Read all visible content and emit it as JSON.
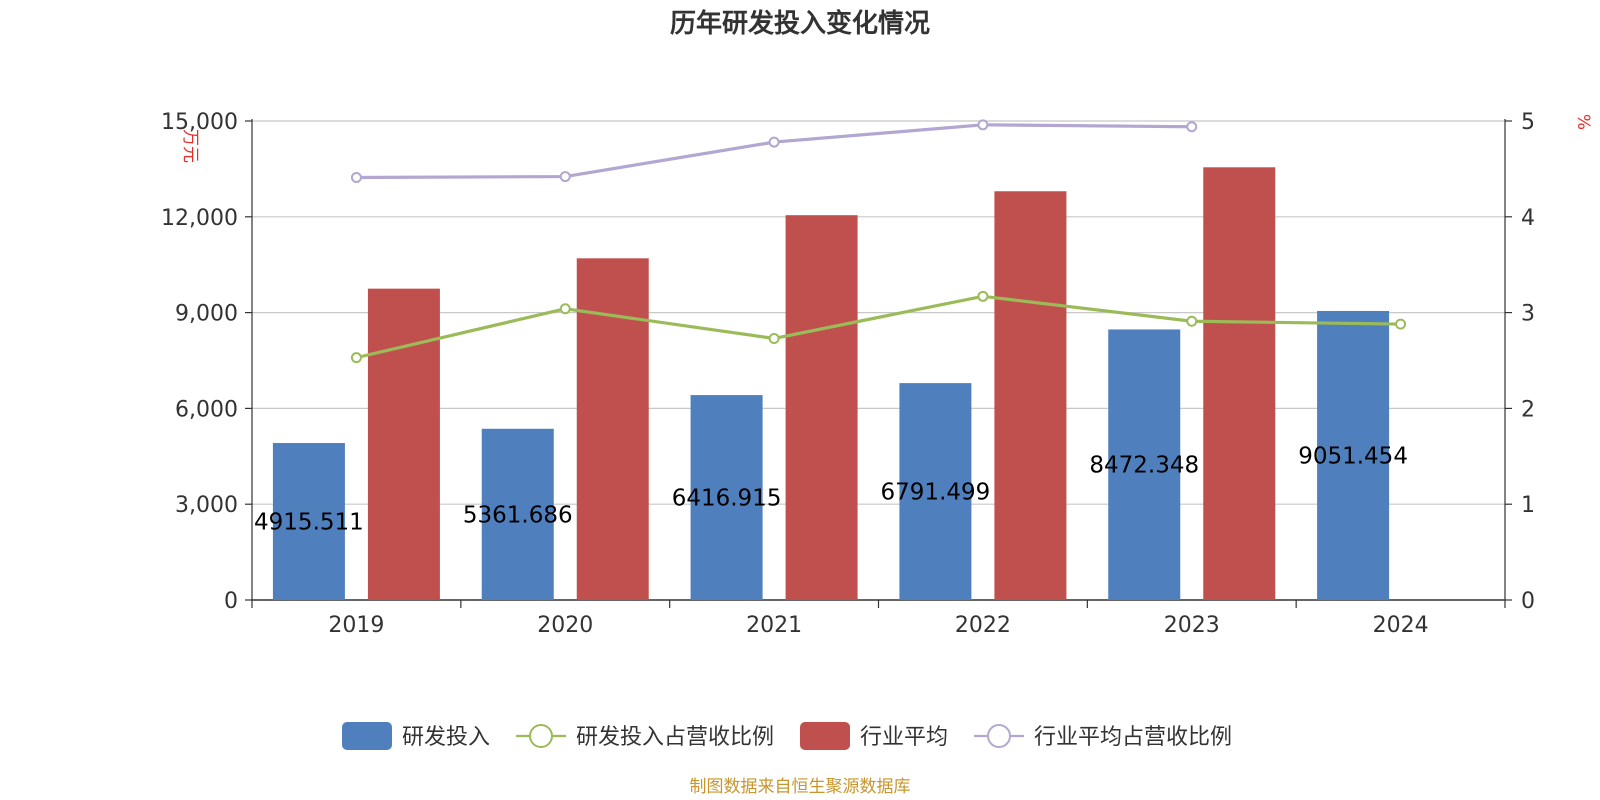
{
  "chart_data": {
    "type": "bar",
    "title": "历年研发投入变化情况",
    "categories": [
      "2019",
      "2020",
      "2021",
      "2022",
      "2023",
      "2024"
    ],
    "y_left": {
      "unit": "万元",
      "ylim": [
        0,
        15000
      ],
      "ticks": [
        "0",
        "3,000",
        "6,000",
        "9,000",
        "12,000",
        "15,000"
      ],
      "tick_values": [
        0,
        3000,
        6000,
        9000,
        12000,
        15000
      ]
    },
    "y_right": {
      "unit": "%",
      "ylim": [
        0,
        5
      ],
      "ticks": [
        "0",
        "1",
        "2",
        "3",
        "4",
        "5"
      ],
      "tick_values": [
        0,
        1,
        2,
        3,
        4,
        5
      ]
    },
    "series": [
      {
        "name": "研发投入",
        "kind": "bar",
        "axis": "left",
        "color": "#4f7fbd",
        "values": [
          4915.511,
          5361.686,
          6416.915,
          6791.499,
          8472.348,
          9051.454
        ],
        "labels": [
          "4915.511",
          "5361.686",
          "6416.915",
          "6791.499",
          "8472.348",
          "9051.454"
        ]
      },
      {
        "name": "研发投入占营收比例",
        "kind": "line",
        "axis": "right",
        "color": "#9bbb59",
        "values": [
          2.53,
          3.04,
          2.73,
          3.17,
          2.91,
          2.88
        ]
      },
      {
        "name": "行业平均",
        "kind": "bar",
        "axis": "left",
        "color": "#c0504d",
        "values": [
          9750,
          10700,
          12050,
          12800,
          13550,
          null
        ]
      },
      {
        "name": "行业平均占营收比例",
        "kind": "line",
        "axis": "right",
        "color": "#b3a6d0",
        "values": [
          4.41,
          4.42,
          4.78,
          4.96,
          4.94,
          null
        ]
      }
    ],
    "grid": true,
    "legend_position": "bottom"
  },
  "source_note": "制图数据来自恒生聚源数据库"
}
